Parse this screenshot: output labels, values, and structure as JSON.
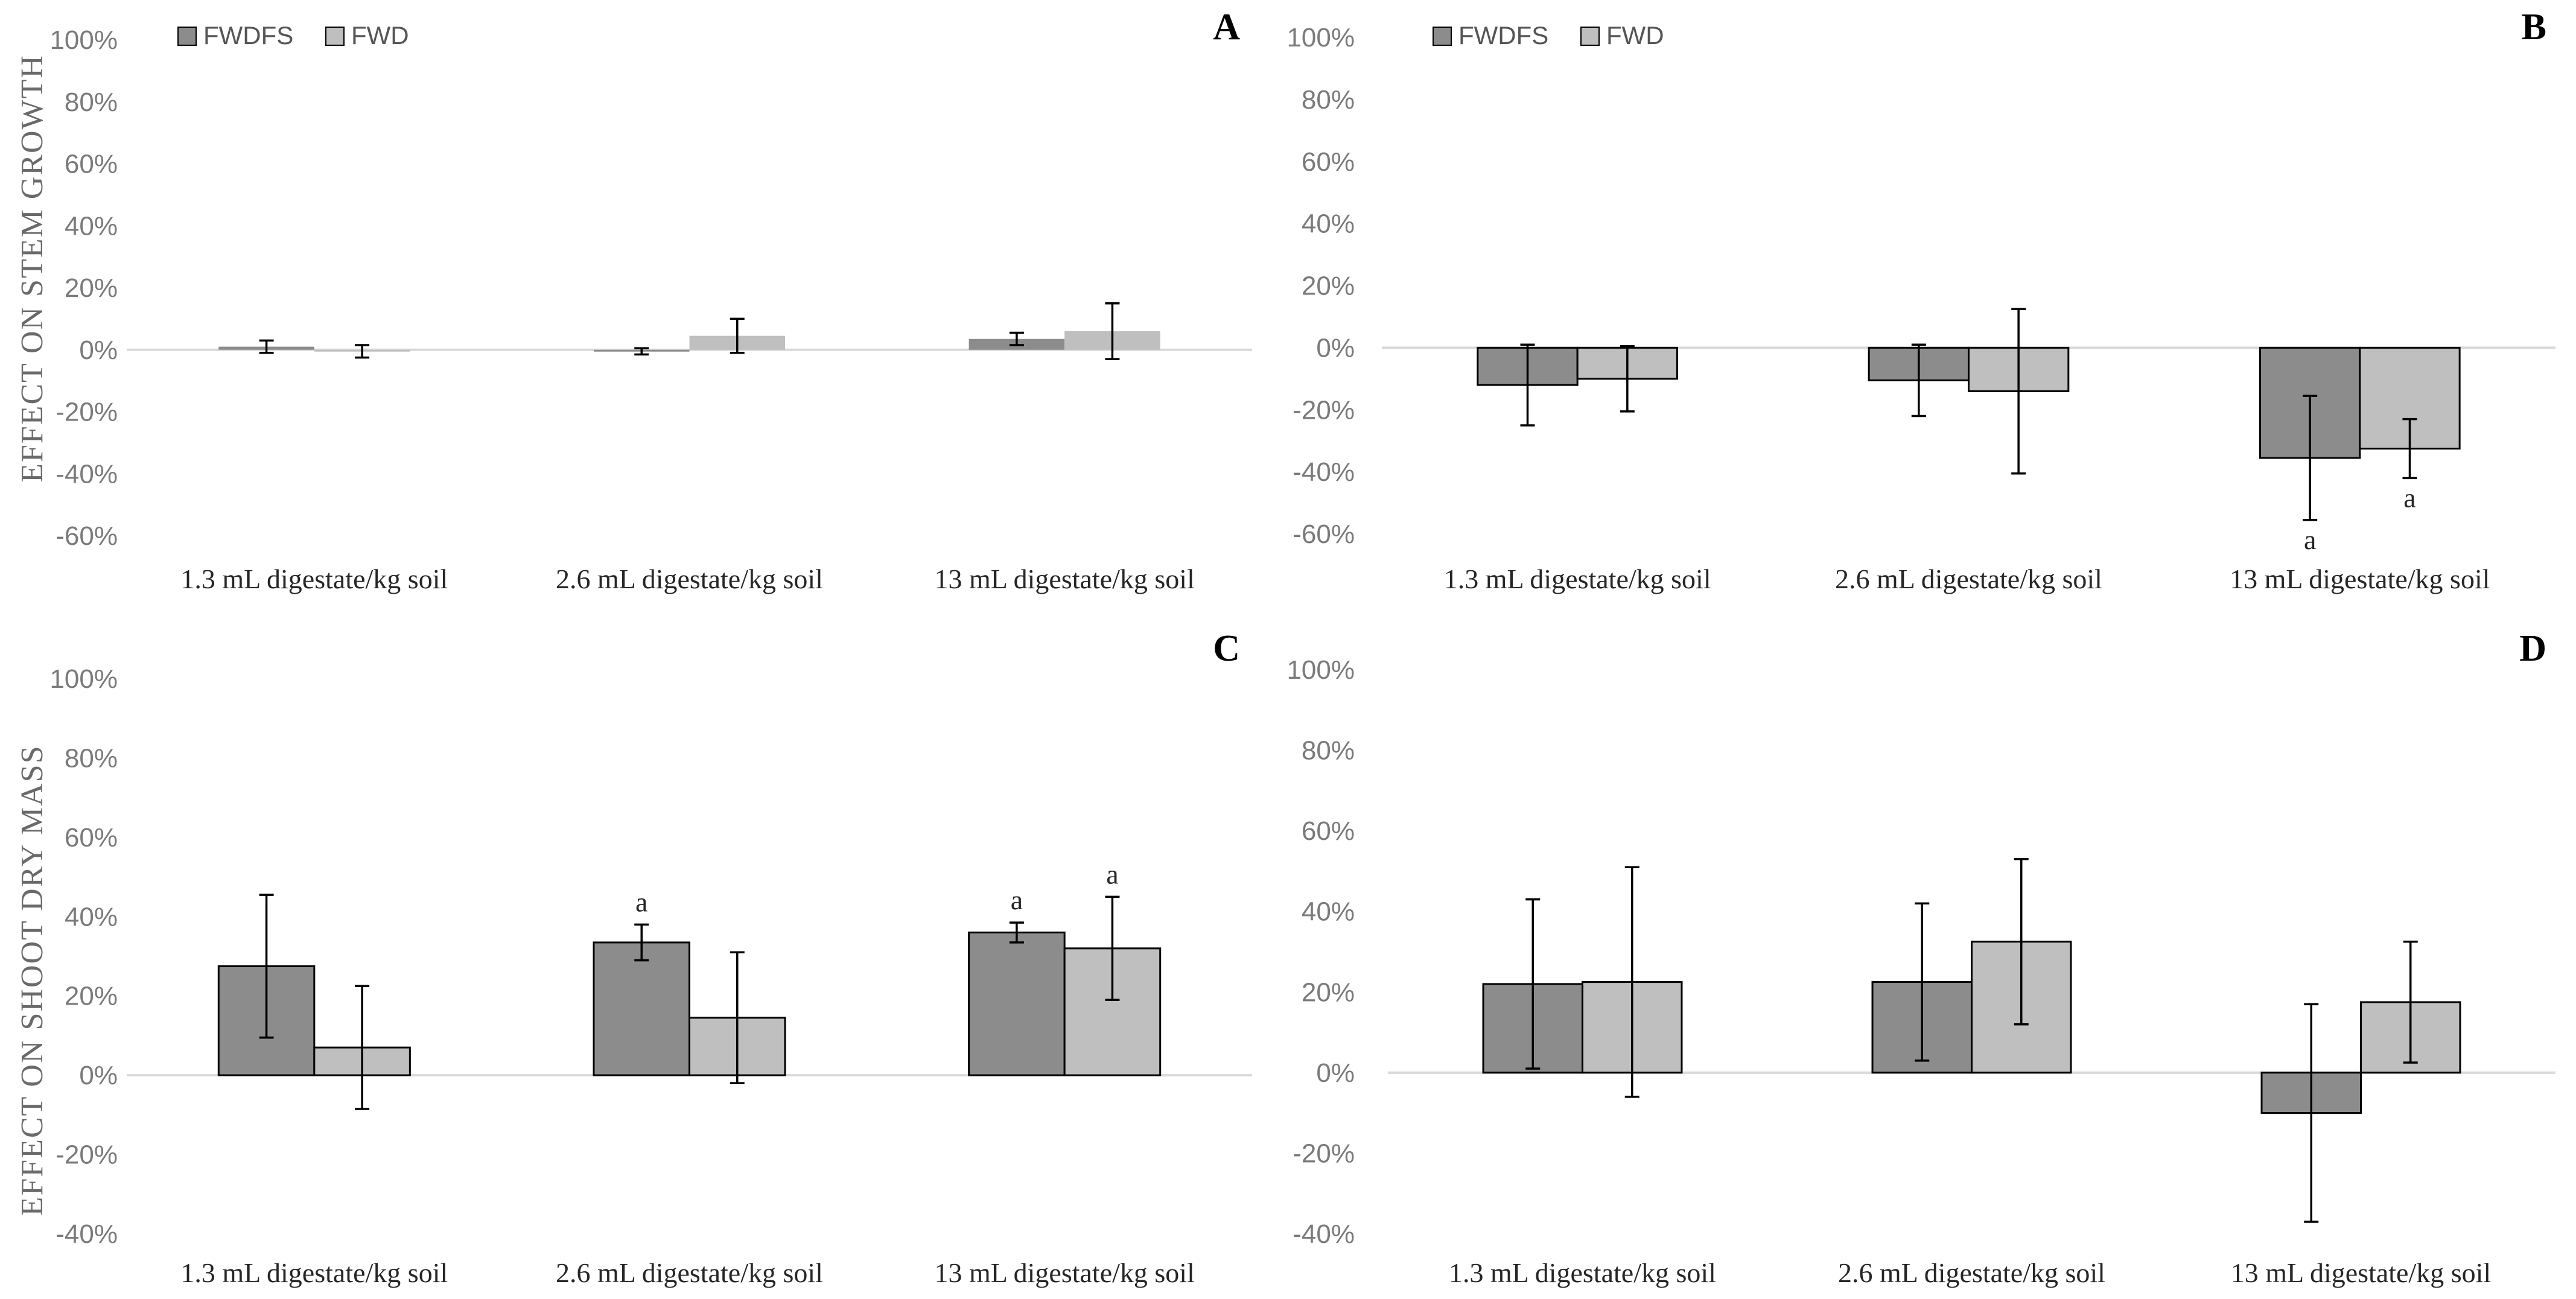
{
  "colors": {
    "FWDFS": "#8c8c8c",
    "FWD": "#bfbfbf",
    "zero_line": "#d9d9d9",
    "border": "#000000"
  },
  "legend": [
    "FWDFS",
    "FWD"
  ],
  "y_axis_labels": {
    "top_row": "EFFECT ON STEM GROWTH",
    "bottom_row": "EFFECT ON SHOOT DRY MASS"
  },
  "chart_data": [
    {
      "panel": "A",
      "type": "bar",
      "legend_shown": true,
      "bar_border": false,
      "categories": [
        "1.3 mL digestate/kg soil",
        "2.6 mL digestate/kg soil",
        "13 mL digestate/kg soil"
      ],
      "ylim": [
        -60,
        100
      ],
      "ytick_step": 20,
      "ytick_labels": [
        "100%",
        "80%",
        "60%",
        "40%",
        "20%",
        "0%",
        "-20%",
        "-40%",
        "-60%"
      ],
      "series": [
        {
          "name": "FWDFS",
          "values": [
            1,
            -0.5,
            3.5
          ],
          "err": [
            2,
            1,
            2
          ],
          "annotations": [
            "",
            "",
            ""
          ]
        },
        {
          "name": "FWD",
          "values": [
            -0.5,
            4.5,
            6
          ],
          "err": [
            2,
            5.5,
            9
          ],
          "annotations": [
            "",
            "",
            ""
          ]
        }
      ]
    },
    {
      "panel": "B",
      "type": "bar",
      "legend_shown": true,
      "bar_border": true,
      "categories": [
        "1.3 mL digestate/kg soil",
        "2.6 mL digestate/kg soil",
        "13 mL digestate/kg soil"
      ],
      "ylim": [
        -60,
        100
      ],
      "ytick_step": 20,
      "ytick_labels": [
        "100%",
        "80%",
        "60%",
        "40%",
        "20%",
        "0%",
        "-20%",
        "-40%",
        "-60%"
      ],
      "series": [
        {
          "name": "FWDFS",
          "values": [
            -12,
            -10.5,
            -35.5
          ],
          "err": [
            13,
            11.5,
            20
          ],
          "annotations": [
            "",
            "",
            "a"
          ]
        },
        {
          "name": "FWD",
          "values": [
            -10,
            -14,
            -32.5
          ],
          "err": [
            10.5,
            26.5,
            9.5
          ],
          "annotations": [
            "",
            "",
            "a"
          ]
        }
      ]
    },
    {
      "panel": "C",
      "type": "bar",
      "legend_shown": false,
      "bar_border": true,
      "categories": [
        "1.3 mL digestate/kg soil",
        "2.6 mL digestate/kg soil",
        "13 mL digestate/kg soil"
      ],
      "ylim": [
        -40,
        100
      ],
      "ytick_step": 20,
      "ytick_labels": [
        "100%",
        "80%",
        "60%",
        "40%",
        "20%",
        "0%",
        "-20%",
        "-40%"
      ],
      "series": [
        {
          "name": "FWDFS",
          "values": [
            27.5,
            33.5,
            36
          ],
          "err": [
            18,
            4.5,
            2.5
          ],
          "annotations": [
            "",
            "a",
            "a"
          ]
        },
        {
          "name": "FWD",
          "values": [
            7,
            14.5,
            32
          ],
          "err": [
            15.5,
            16.5,
            13
          ],
          "annotations": [
            "",
            "",
            "a"
          ]
        }
      ]
    },
    {
      "panel": "D",
      "type": "bar",
      "legend_shown": false,
      "bar_border": true,
      "categories": [
        "1.3 mL digestate/kg soil",
        "2.6 mL digestate/kg soil",
        "13 mL digestate/kg soil"
      ],
      "ylim": [
        -40,
        100
      ],
      "ytick_step": 20,
      "ytick_labels": [
        "100%",
        "80%",
        "60%",
        "40%",
        "20%",
        "0%",
        "-20%",
        "-40%"
      ],
      "series": [
        {
          "name": "FWDFS",
          "values": [
            22,
            22.5,
            -10
          ],
          "err": [
            21,
            19.5,
            27
          ],
          "annotations": [
            "",
            "",
            ""
          ]
        },
        {
          "name": "FWD",
          "values": [
            22.5,
            32.5,
            17.5
          ],
          "err": [
            28.5,
            20.5,
            15
          ],
          "annotations": [
            "",
            "",
            ""
          ]
        }
      ]
    }
  ]
}
